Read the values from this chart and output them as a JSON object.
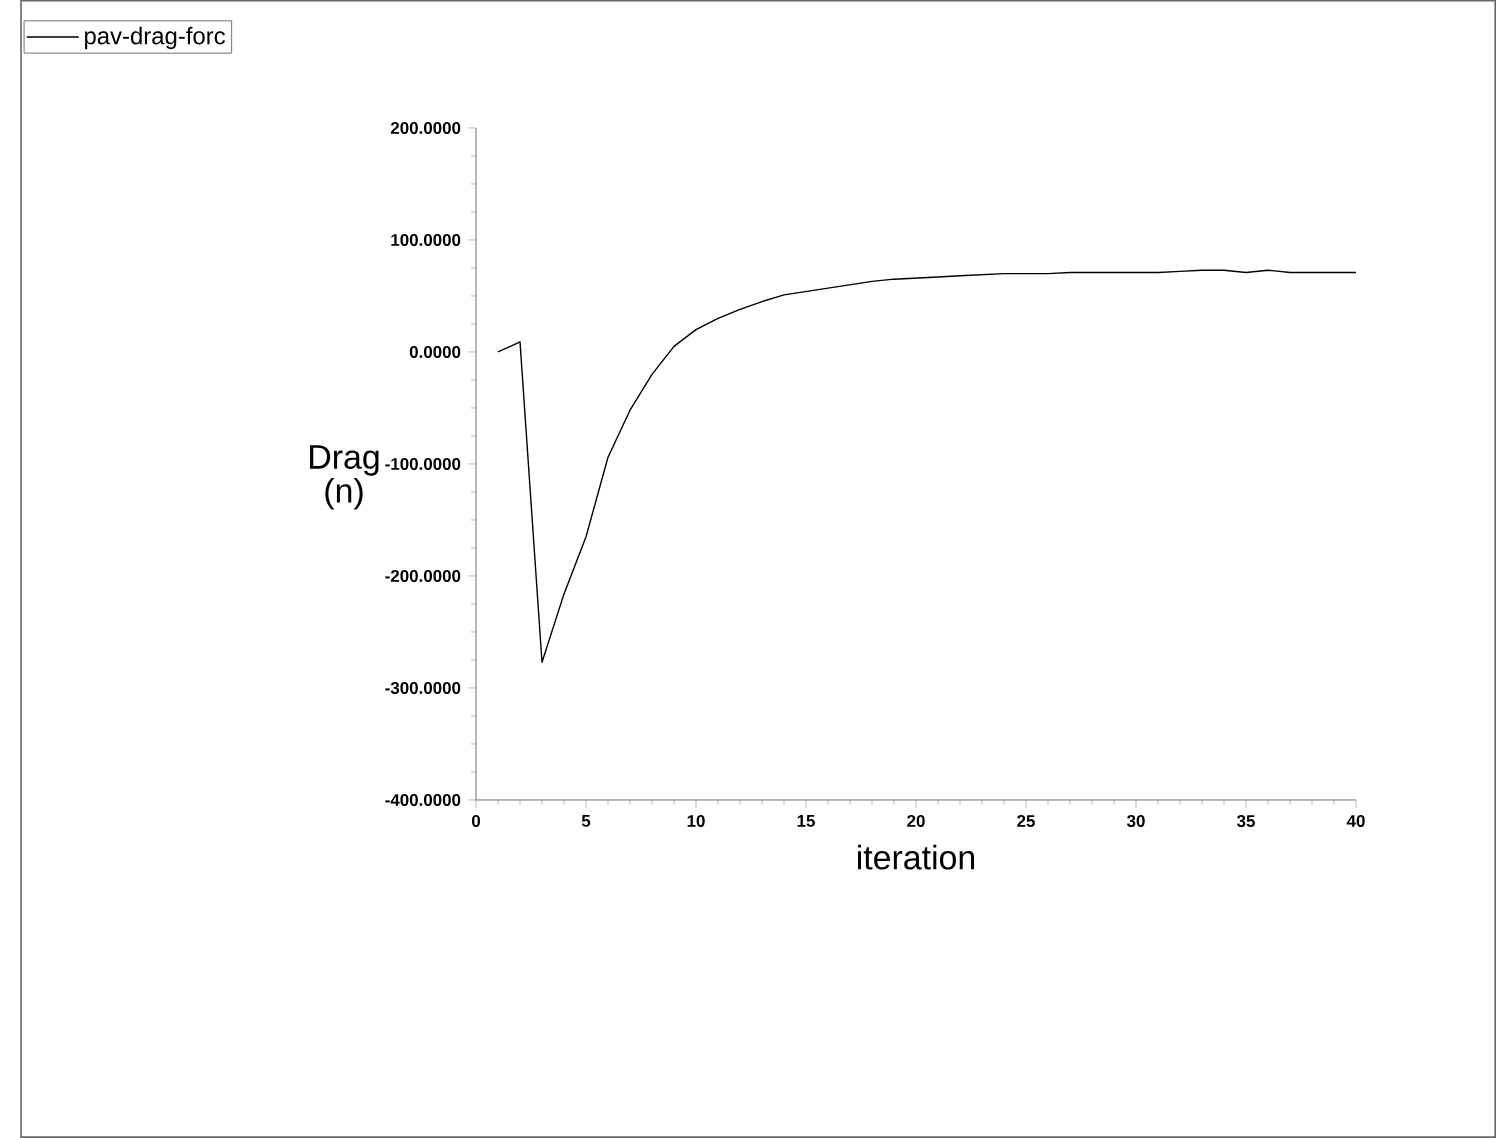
{
  "chart_data": {
    "type": "line",
    "xlabel": "iteration",
    "ylabel": "Drag (n)",
    "x": [
      1,
      2,
      3,
      4,
      5,
      6,
      7,
      8,
      9,
      10,
      11,
      12,
      13,
      14,
      15,
      16,
      17,
      18,
      19,
      20,
      21,
      22,
      23,
      24,
      25,
      26,
      27,
      28,
      29,
      30,
      31,
      32,
      33,
      34,
      35,
      36,
      37,
      38,
      39,
      40
    ],
    "series": [
      {
        "name": "pav-drag-forc",
        "color": "#000000",
        "values": [
          0,
          9,
          -277,
          -216,
          -165,
          -94,
          -52,
          -20,
          5,
          20,
          30,
          38,
          45,
          51,
          54,
          57,
          60,
          63,
          65,
          66,
          67,
          68,
          69,
          70,
          70,
          70,
          71,
          71,
          71,
          71,
          71,
          72,
          73,
          73,
          71,
          73,
          71,
          71,
          71,
          71
        ]
      }
    ],
    "xlim": [
      0,
      40
    ],
    "xticks": [
      0,
      5,
      10,
      15,
      20,
      25,
      30,
      35,
      40
    ],
    "ylim": [
      -400,
      200
    ],
    "yticks": [
      {
        "value": -400,
        "label": "-400.0000"
      },
      {
        "value": -300,
        "label": "-300.0000"
      },
      {
        "value": -200,
        "label": "-200.0000"
      },
      {
        "value": -100,
        "label": "-100.0000"
      },
      {
        "value": 0,
        "label": "0.0000"
      },
      {
        "value": 100,
        "label": "100.0000"
      },
      {
        "value": 200,
        "label": "200.0000"
      }
    ],
    "grid": false,
    "legend": "top left",
    "marker": "none",
    "line_style": "solid"
  }
}
